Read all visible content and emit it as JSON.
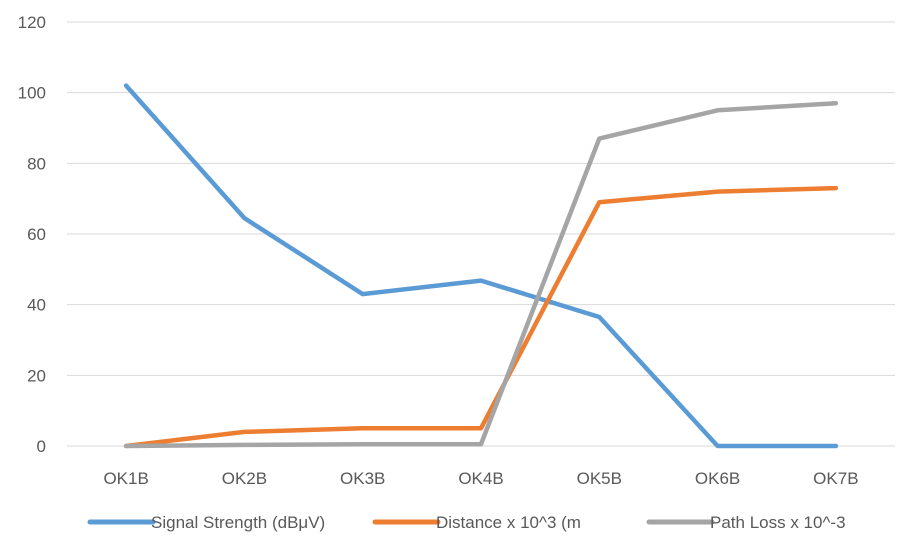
{
  "chart_data": {
    "type": "line",
    "title": "",
    "xlabel": "",
    "ylabel": "",
    "categories": [
      "OK1B",
      "OK2B",
      "OK3B",
      "OK4B",
      "OK5B",
      "OK6B",
      "OK7B"
    ],
    "ylim": [
      0,
      120
    ],
    "yticks": [
      "0",
      "20",
      "40",
      "60",
      "80",
      "100",
      "120"
    ],
    "grid": "horizontal",
    "legend_position": "bottom",
    "series": [
      {
        "name": "Signal Strength (dBμV)",
        "color": "#5B9BD5",
        "values": [
          102,
          64.5,
          43,
          46.8,
          36.5,
          0,
          0
        ]
      },
      {
        "name": "Distance x 10^3 (m",
        "color": "#ED7D31",
        "values": [
          0,
          4,
          5,
          5,
          69,
          72,
          73
        ]
      },
      {
        "name": "Path Loss x 10^-3",
        "color": "#A5A5A5",
        "values": [
          0,
          0.3,
          0.5,
          0.5,
          87,
          95,
          97
        ]
      }
    ]
  }
}
